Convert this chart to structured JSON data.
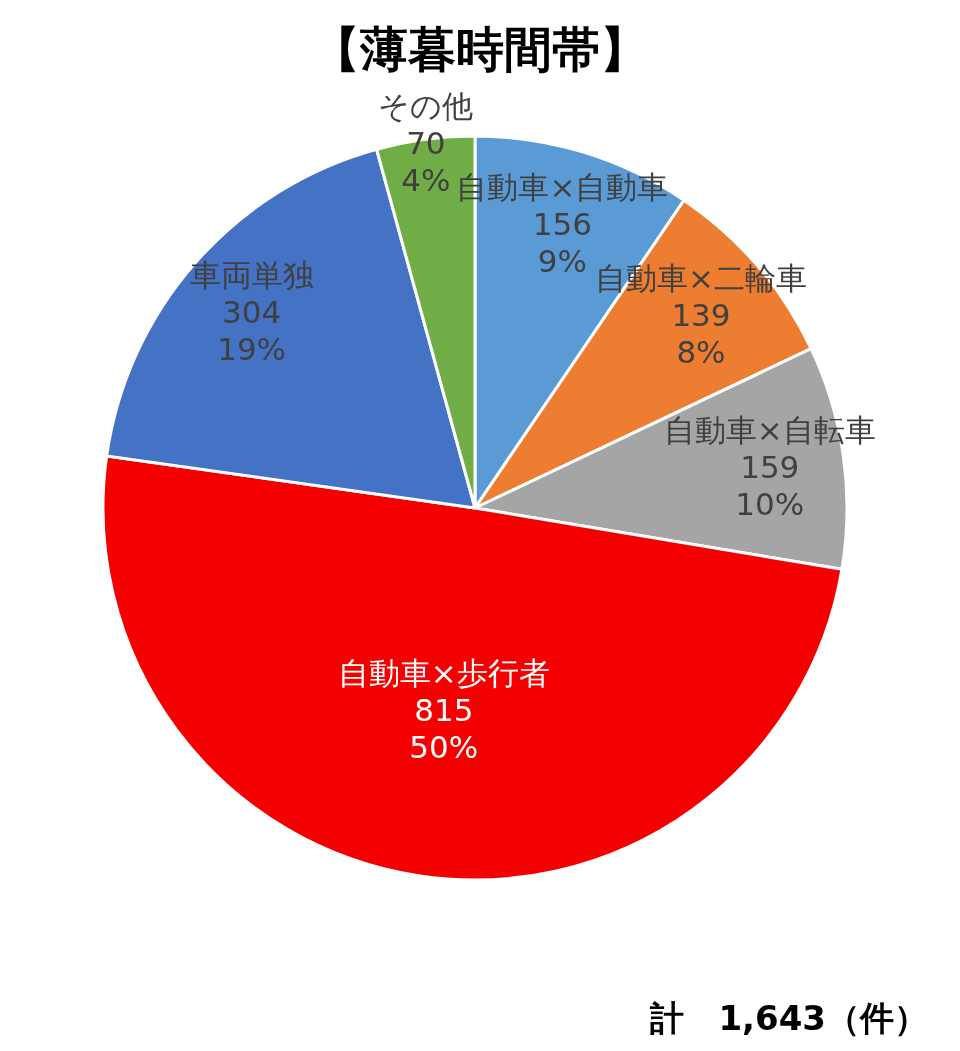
{
  "chart_data": {
    "type": "pie",
    "title": "【薄暮時間帯】",
    "categories": [
      "自動車×自動車",
      "自動車×二輪車",
      "自動車×自転車",
      "自動車×歩行者",
      "車両単独",
      "その他"
    ],
    "values": [
      156,
      139,
      159,
      815,
      304,
      70
    ],
    "colors": [
      "#5b9bd5",
      "#ed7d31",
      "#a5a5a5",
      "#f50000",
      "#4472c4",
      "#70ad47"
    ],
    "value_labels": [
      "156\n9%",
      "139\n8%",
      "159\n10%",
      "815\n50%",
      "304\n19%",
      "70\n4%"
    ],
    "annotations": [
      "計　1,643（件）"
    ]
  }
}
